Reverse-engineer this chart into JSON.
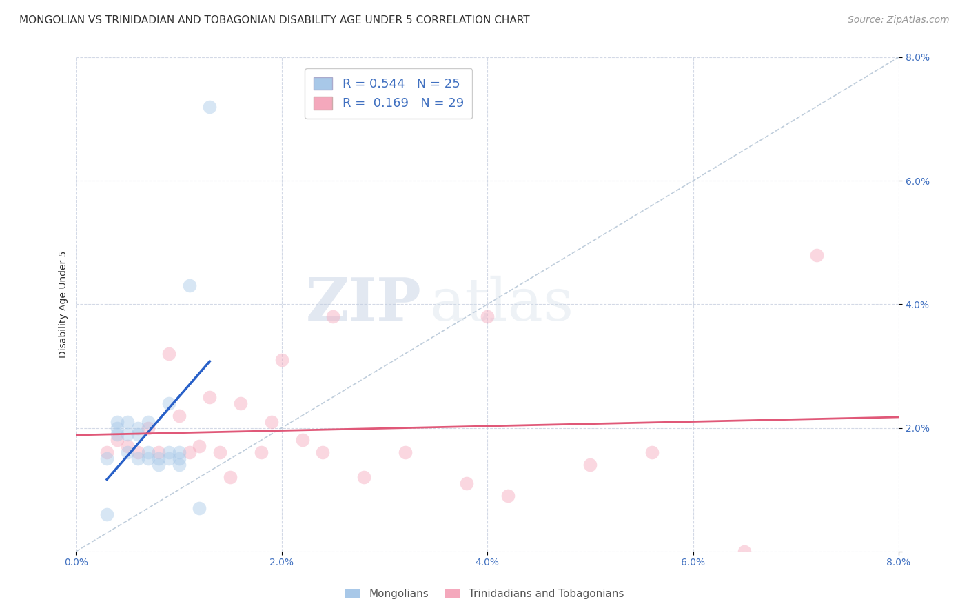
{
  "title": "MONGOLIAN VS TRINIDADIAN AND TOBAGONIAN DISABILITY AGE UNDER 5 CORRELATION CHART",
  "source": "Source: ZipAtlas.com",
  "ylabel": "Disability Age Under 5",
  "xlabel": "",
  "watermark_zip": "ZIP",
  "watermark_atlas": "atlas",
  "mongolian_R": 0.544,
  "mongolian_N": 25,
  "trinidadian_R": 0.169,
  "trinidadian_N": 29,
  "xlim": [
    0.0,
    0.08
  ],
  "ylim": [
    0.0,
    0.08
  ],
  "xticks": [
    0.0,
    0.02,
    0.04,
    0.06,
    0.08
  ],
  "yticks": [
    0.0,
    0.02,
    0.04,
    0.06,
    0.08
  ],
  "xticklabels": [
    "0.0%",
    "2.0%",
    "4.0%",
    "6.0%",
    "8.0%"
  ],
  "yticklabels": [
    "",
    "2.0%",
    "4.0%",
    "6.0%",
    "8.0%"
  ],
  "mongolian_color": "#a8c8e8",
  "trinidadian_color": "#f4a8bc",
  "mongolian_line_color": "#2860c8",
  "trinidadian_line_color": "#e05878",
  "diagonal_color": "#b8c8d8",
  "background_color": "#ffffff",
  "grid_color": "#c8d0e0",
  "mongolian_x": [
    0.003,
    0.003,
    0.004,
    0.004,
    0.004,
    0.005,
    0.005,
    0.005,
    0.006,
    0.006,
    0.006,
    0.007,
    0.007,
    0.007,
    0.008,
    0.008,
    0.009,
    0.009,
    0.009,
    0.01,
    0.01,
    0.01,
    0.011,
    0.012,
    0.013
  ],
  "mongolian_y": [
    0.006,
    0.015,
    0.019,
    0.02,
    0.021,
    0.016,
    0.019,
    0.021,
    0.015,
    0.019,
    0.02,
    0.015,
    0.016,
    0.021,
    0.014,
    0.015,
    0.015,
    0.016,
    0.024,
    0.014,
    0.015,
    0.016,
    0.043,
    0.007,
    0.072
  ],
  "trinidadian_x": [
    0.003,
    0.004,
    0.005,
    0.006,
    0.007,
    0.008,
    0.009,
    0.01,
    0.011,
    0.012,
    0.013,
    0.014,
    0.015,
    0.016,
    0.018,
    0.019,
    0.02,
    0.022,
    0.024,
    0.025,
    0.028,
    0.032,
    0.038,
    0.04,
    0.042,
    0.05,
    0.056,
    0.065,
    0.072
  ],
  "trinidadian_y": [
    0.016,
    0.018,
    0.017,
    0.016,
    0.02,
    0.016,
    0.032,
    0.022,
    0.016,
    0.017,
    0.025,
    0.016,
    0.012,
    0.024,
    0.016,
    0.021,
    0.031,
    0.018,
    0.016,
    0.038,
    0.012,
    0.016,
    0.011,
    0.038,
    0.009,
    0.014,
    0.016,
    0.0,
    0.048
  ],
  "marker_size": 200,
  "marker_alpha": 0.45,
  "title_fontsize": 11,
  "axis_label_fontsize": 10,
  "tick_fontsize": 10,
  "legend_fontsize": 13,
  "source_fontsize": 10
}
